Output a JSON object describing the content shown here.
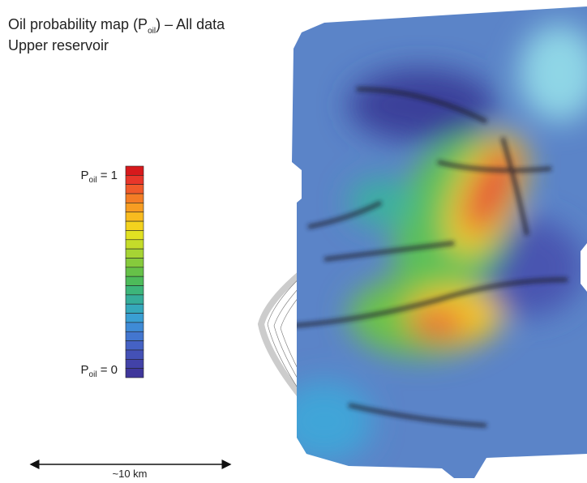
{
  "title": {
    "line1": {
      "before": "Oil probability map (P",
      "subscript": "oil",
      "after": ") – All data"
    },
    "line2": "Upper reservoir"
  },
  "legend": {
    "top": {
      "before": "P",
      "subscript": "oil",
      "after": " = 1"
    },
    "bottom": {
      "before": "P",
      "subscript": "oil",
      "after": " = 0"
    },
    "colors": [
      "#d7191c",
      "#e8362a",
      "#f05a2a",
      "#f47d25",
      "#f79d22",
      "#f8bb1f",
      "#f3d21e",
      "#e1e122",
      "#c4dc2a",
      "#a6d434",
      "#86ca3c",
      "#66c148",
      "#4dbb5a",
      "#3db57a",
      "#36ad9a",
      "#35a8bb",
      "#3a9fd3",
      "#3f8bd6",
      "#4376cf",
      "#4562c4",
      "#4451b6",
      "#4242a8",
      "#3f379b"
    ]
  },
  "scale": "~10 km"
}
